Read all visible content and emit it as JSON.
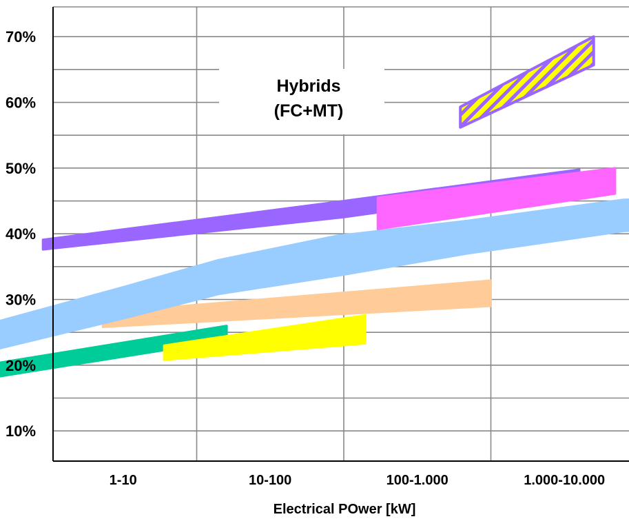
{
  "chart_data": {
    "type": "area",
    "title": "",
    "xlabel": "Electrical POwer [kW]",
    "ylabel": "",
    "x_categories": [
      "1-10",
      "10-100",
      "100-1.000",
      "1.000-10.000"
    ],
    "y_ticks": [
      "10%",
      "20%",
      "30%",
      "40%",
      "50%",
      "60%",
      "70%"
    ],
    "ylim": [
      5,
      75
    ],
    "y_unit": "%",
    "grid": true,
    "x_scale": "log",
    "annotation": {
      "line1": "Hybrids",
      "line2": "(FC+MT)"
    },
    "bands": [
      {
        "color": "#00cc99",
        "points_upper": [
          [
            0.38,
            20.1
          ],
          [
            16,
            26.0
          ]
        ],
        "points_lower": [
          [
            0.38,
            18.0
          ],
          [
            16,
            23.8
          ]
        ]
      },
      {
        "color": "#ffff00",
        "points_upper": [
          [
            6,
            23.0
          ],
          [
            140,
            27.6
          ]
        ],
        "points_lower": [
          [
            6,
            20.8
          ],
          [
            140,
            23.3
          ]
        ]
      },
      {
        "color": "#ffcc99",
        "points_upper": [
          [
            2.3,
            28.0
          ],
          [
            1000,
            32.9
          ]
        ],
        "points_lower": [
          [
            2.3,
            25.8
          ],
          [
            1000,
            29.0
          ]
        ]
      },
      {
        "color": "#99ccff",
        "points_upper": [
          [
            0.45,
            26.7
          ],
          [
            3.3,
            32.0
          ],
          [
            14,
            36.0
          ],
          [
            90,
            39.7
          ],
          [
            700,
            42.0
          ],
          [
            8000,
            45.2
          ],
          [
            50000,
            45.4
          ]
        ],
        "points_lower": [
          [
            0.45,
            22.5
          ],
          [
            3.3,
            27.2
          ],
          [
            14,
            30.8
          ],
          [
            90,
            33.6
          ],
          [
            700,
            37.0
          ],
          [
            8000,
            40.4
          ],
          [
            50000,
            41.2
          ]
        ]
      },
      {
        "color": "#9966ff",
        "points_upper": [
          [
            0.9,
            39.1
          ],
          [
            100,
            45.0
          ],
          [
            4000,
            49.8
          ]
        ],
        "points_lower": [
          [
            0.9,
            37.6
          ],
          [
            100,
            42.5
          ],
          [
            4000,
            47.5
          ]
        ]
      },
      {
        "color": "#ff66ff",
        "points_upper": [
          [
            170,
            45.5
          ],
          [
            7000,
            50.0
          ]
        ],
        "points_lower": [
          [
            170,
            40.7
          ],
          [
            7000,
            46.1
          ]
        ]
      },
      {
        "color": "#ffff00",
        "hatch": "#9966ff",
        "outline": "#9966ff",
        "points_upper": [
          [
            620,
            59.3
          ],
          [
            5000,
            70.0
          ]
        ],
        "points_lower": [
          [
            620,
            56.2
          ],
          [
            5000,
            65.7
          ]
        ]
      }
    ]
  }
}
